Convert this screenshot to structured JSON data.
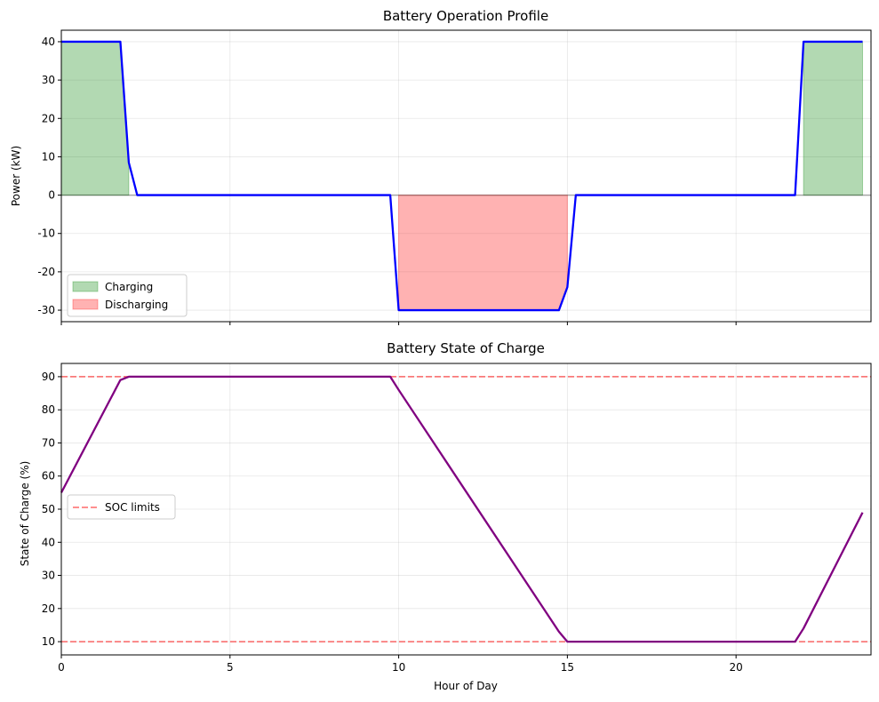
{
  "chart_data": [
    {
      "type": "line",
      "title": "Battery Operation Profile",
      "xlabel": "",
      "ylabel": "Power (kW)",
      "xlim": [
        0,
        24
      ],
      "ylim": [
        -33,
        43
      ],
      "xticks": [
        0,
        5,
        10,
        15,
        20
      ],
      "yticks": [
        -30,
        -20,
        -10,
        0,
        10,
        20,
        30,
        40
      ],
      "xtick_labels_visible": false,
      "grid": true,
      "legend_position": "lower-left",
      "series": [
        {
          "name": "",
          "color": "#0000ff",
          "x": [
            0,
            1.75,
            2.0,
            2.25,
            9.75,
            10.0,
            14.75,
            15.0,
            15.25,
            21.75,
            22.0,
            23.75
          ],
          "values": [
            40,
            40,
            8.5,
            0,
            0,
            -30,
            -30,
            -24,
            0,
            0,
            40,
            40
          ]
        }
      ],
      "fills": [
        {
          "name": "Charging",
          "color": "#008000",
          "x": [
            0,
            1.75,
            2.0
          ],
          "values": [
            40,
            40,
            8.5
          ]
        },
        {
          "name": "Charging",
          "color": "#008000",
          "x": [
            22.0,
            23.75
          ],
          "values": [
            40,
            40
          ]
        },
        {
          "name": "Discharging",
          "color": "#ff0000",
          "x": [
            10.0,
            14.75,
            15.0
          ],
          "values": [
            -30,
            -30,
            -24
          ]
        }
      ],
      "legend": [
        {
          "label": "Charging",
          "color": "#008000"
        },
        {
          "label": "Discharging",
          "color": "#ff0000"
        }
      ],
      "zero_line": true
    },
    {
      "type": "line",
      "title": "Battery State of Charge",
      "xlabel": "Hour of Day",
      "ylabel": "State of Charge (%)",
      "xlim": [
        0,
        24
      ],
      "ylim": [
        6,
        94
      ],
      "xticks": [
        0,
        5,
        10,
        15,
        20
      ],
      "yticks": [
        10,
        20,
        30,
        40,
        50,
        60,
        70,
        80,
        90
      ],
      "grid": true,
      "legend_position": "center-left",
      "series": [
        {
          "name": "",
          "color": "#800080",
          "x": [
            0,
            1.75,
            2.0,
            2.25,
            9.75,
            10.0,
            14.75,
            15.0,
            15.25,
            21.75,
            22.0,
            23.75
          ],
          "values": [
            55,
            89,
            90,
            90,
            90,
            86,
            13,
            10,
            10,
            10,
            14,
            49
          ]
        }
      ],
      "hlines": [
        {
          "name": "SOC limits",
          "value": 90,
          "color": "#ff0000"
        },
        {
          "name": "SOC limits",
          "value": 10,
          "color": "#ff0000"
        }
      ],
      "legend": [
        {
          "label": "SOC limits",
          "color": "#ff0000"
        }
      ]
    }
  ]
}
